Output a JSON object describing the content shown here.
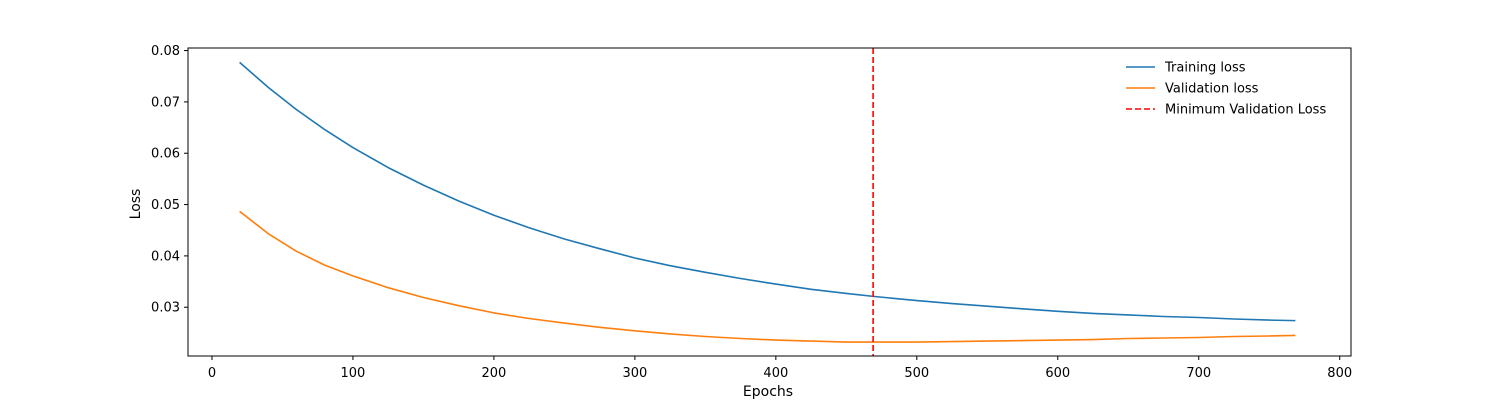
{
  "chart_data": {
    "type": "line",
    "title": "",
    "xlabel": "Epochs",
    "ylabel": "Loss",
    "xlim": [
      -17,
      808
    ],
    "ylim": [
      0.0205,
      0.0805
    ],
    "xticks": [
      0,
      100,
      200,
      300,
      400,
      500,
      600,
      700,
      800
    ],
    "yticks": [
      0.03,
      0.04,
      0.05,
      0.06,
      0.07,
      0.08
    ],
    "grid": false,
    "legend_position": "top-right",
    "series": [
      {
        "name": "Training loss",
        "color": "#1f77b4",
        "style": "solid",
        "x": [
          20,
          40,
          60,
          80,
          100,
          125,
          150,
          175,
          200,
          225,
          250,
          275,
          300,
          325,
          350,
          375,
          400,
          425,
          450,
          470,
          500,
          525,
          550,
          575,
          600,
          625,
          650,
          675,
          700,
          725,
          750,
          768
        ],
        "y": [
          0.0776,
          0.0728,
          0.0685,
          0.0646,
          0.0611,
          0.0572,
          0.0538,
          0.0507,
          0.0479,
          0.0455,
          0.0433,
          0.0414,
          0.0396,
          0.0381,
          0.0368,
          0.0356,
          0.0345,
          0.0335,
          0.0327,
          0.0321,
          0.0313,
          0.0307,
          0.0302,
          0.0297,
          0.0292,
          0.0288,
          0.0285,
          0.0282,
          0.028,
          0.0277,
          0.0275,
          0.0274
        ]
      },
      {
        "name": "Validation loss",
        "color": "#ff7f0e",
        "style": "solid",
        "x": [
          20,
          40,
          60,
          80,
          100,
          125,
          150,
          175,
          200,
          225,
          250,
          275,
          300,
          325,
          350,
          375,
          400,
          425,
          450,
          470,
          500,
          525,
          550,
          575,
          600,
          625,
          650,
          675,
          700,
          725,
          750,
          768
        ],
        "y": [
          0.0486,
          0.0443,
          0.0409,
          0.0382,
          0.0361,
          0.0338,
          0.0319,
          0.0303,
          0.0289,
          0.0278,
          0.0269,
          0.0261,
          0.0254,
          0.0248,
          0.0243,
          0.0239,
          0.0236,
          0.0234,
          0.0232,
          0.0232,
          0.0232,
          0.0233,
          0.0234,
          0.0235,
          0.0236,
          0.0237,
          0.0239,
          0.024,
          0.0241,
          0.0243,
          0.0244,
          0.0245
        ]
      }
    ],
    "vlines": [
      {
        "name": "Minimum Validation Loss",
        "x": 469,
        "color": "#ff0000",
        "style": "dashed"
      }
    ]
  }
}
